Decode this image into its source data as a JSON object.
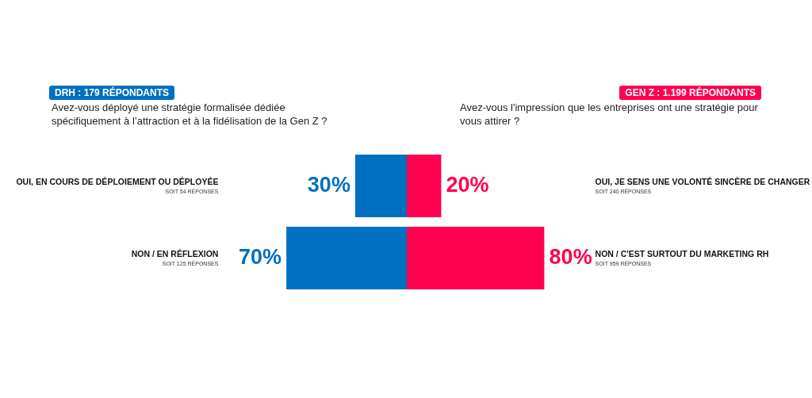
{
  "chart_data": [
    {
      "type": "bar",
      "orientation": "horizontal",
      "title": "DRH : 179 RÉPONDANTS",
      "subtitle": "Avez-vous déployé une stratégie formalisée dédiée spécifiquement à l’attraction et à la fidélisation de la Gen Z ?",
      "categories": [
        "OUI, EN COURS DE DÉPLOIEMENT OU DÉPLOYÉE",
        "NON / EN RÉFLEXION"
      ],
      "values": [
        30,
        70
      ],
      "color": "#0070c0",
      "value_labels": [
        "30%",
        "70%"
      ],
      "annotations": [
        "SOIT 54 RÉPONSES",
        "SOIT 125 RÉPONSES"
      ]
    },
    {
      "type": "bar",
      "orientation": "horizontal",
      "title": "GEN Z : 1.199 RÉPONDANTS",
      "subtitle": "Avez-vous l'impression que les entreprises ont une stratégie pour vous attirer ?",
      "categories": [
        "OUI, JE SENS UNE VOLONTÉ SINCÈRE DE CHANGER",
        "NON / C'EST SURTOUT DU MARKETING RH"
      ],
      "values": [
        20,
        80
      ],
      "color": "#ff0050",
      "value_labels": [
        "20%",
        "80%"
      ],
      "annotations": [
        "SOIT 240 RÉPONSES",
        "SOIT 959 RÉPONSES"
      ]
    }
  ]
}
